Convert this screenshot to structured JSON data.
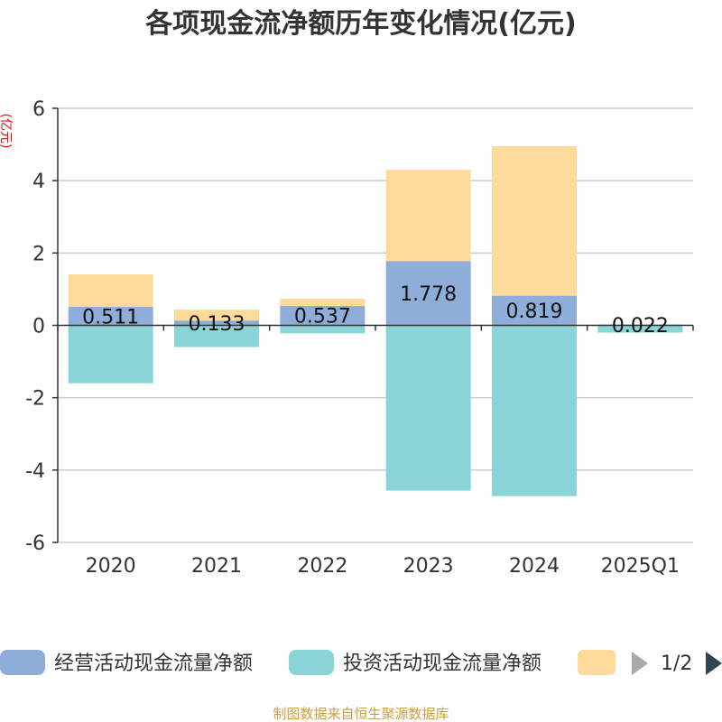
{
  "title": "各项现金流净额历年变化情况(亿元)",
  "source": "制图数据来自恒生聚源数据库",
  "colors": {
    "operating": "#8fadd9",
    "investing": "#88d4d6",
    "financing": "#fdd99a",
    "axis": "#333333",
    "grid": "#cccccc",
    "ylabel": "#e01010",
    "source": "#c8a040",
    "nav_inactive": "#aaaaaa",
    "nav_active": "#2f4554"
  },
  "chart_data": {
    "type": "bar",
    "stacked": true,
    "title": "各项现金流净额历年变化情况(亿元)",
    "ylabel": "(亿元)",
    "xlabel": "",
    "categories": [
      "2020",
      "2021",
      "2022",
      "2023",
      "2024",
      "2025Q1"
    ],
    "ylim": [
      -6,
      6
    ],
    "yticks": [
      "6",
      "4",
      "2",
      "0",
      "-2",
      "-4",
      "-6"
    ],
    "grid": true,
    "series": [
      {
        "name": "经营活动现金流量净额",
        "color_key": "operating",
        "values": [
          0.511,
          0.133,
          0.537,
          1.778,
          0.819,
          0.022
        ],
        "labels": [
          "0.511",
          "0.133",
          "0.537",
          "1.778",
          "0.819",
          "0.022"
        ]
      },
      {
        "name": "投资活动现金流量净额",
        "color_key": "investing",
        "values": [
          -1.6,
          -0.6,
          -0.22,
          -4.57,
          -4.72,
          -0.2
        ]
      },
      {
        "name": "",
        "color_key": "financing",
        "values": [
          0.9,
          0.3,
          0.2,
          2.52,
          4.13,
          0.0
        ]
      }
    ]
  },
  "legend": {
    "items": [
      {
        "label": "经营活动现金流量净额",
        "color_key": "operating"
      },
      {
        "label": "投资活动现金流量净额",
        "color_key": "investing"
      },
      {
        "label": "",
        "color_key": "financing"
      }
    ],
    "page": "1/2",
    "prev_icon": "triangle-left-icon",
    "next_icon": "triangle-right-icon",
    "placement": "bottom"
  }
}
